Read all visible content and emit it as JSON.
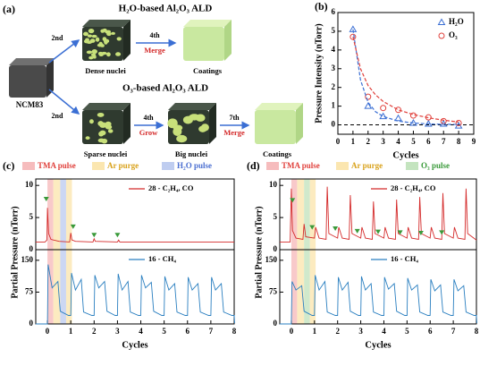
{
  "diagram": {
    "panel_label": "(a)",
    "h2o_title": "H₂O-based Al₂O₃ ALD",
    "o3_title": "O₃-based Al₂O₃ ALD",
    "ncm": "NCM83",
    "h2o_steps": [
      {
        "cycle": "2nd",
        "label": "Dense nuclei"
      },
      {
        "cycle": "4th",
        "action": "Merge",
        "label": "Coatings"
      }
    ],
    "o3_steps": [
      {
        "cycle": "2nd",
        "label": "Sparse nuclei"
      },
      {
        "cycle": "4th",
        "action": "Grow",
        "label": "Big nuclei"
      },
      {
        "cycle": "7th",
        "action": "Merge",
        "label": "Coatings"
      }
    ]
  },
  "chart_data": [
    {
      "type": "scatter",
      "panel_label": "(b)",
      "x_label": "Cycles",
      "y_label": "Pressure Intensity (nTorr)",
      "xlim": [
        0,
        9
      ],
      "xticks": [
        0,
        1,
        2,
        3,
        4,
        5,
        6,
        7,
        8,
        9
      ],
      "ylim": [
        -0.5,
        6
      ],
      "yticks": [
        0,
        1,
        2,
        3,
        4,
        5,
        6
      ],
      "hline": 0,
      "legend": "upper right",
      "series": [
        {
          "name": "H₂O",
          "color": "#3b6fd4",
          "marker": "triangle",
          "x": [
            1,
            2,
            3,
            4,
            5,
            6,
            7,
            8
          ],
          "values": [
            5.1,
            1.0,
            0.45,
            0.35,
            0.1,
            0.05,
            0.05,
            -0.05
          ]
        },
        {
          "name": "O₃",
          "color": "#e0413c",
          "marker": "circle",
          "x": [
            1,
            2,
            3,
            4,
            5,
            6,
            7,
            8
          ],
          "values": [
            4.7,
            1.5,
            0.9,
            0.8,
            0.5,
            0.4,
            0.2,
            0.1
          ]
        },
        {
          "color": "#3b6fd4",
          "dashed": true,
          "x": [
            1,
            1.5,
            2,
            2.5,
            3,
            4,
            5,
            6,
            7,
            8
          ],
          "values": [
            5.1,
            2.4,
            1.2,
            0.7,
            0.45,
            0.2,
            0.1,
            0.05,
            0.03,
            0.02
          ]
        },
        {
          "color": "#e0413c",
          "dashed": true,
          "x": [
            1,
            1.5,
            2,
            2.5,
            3,
            4,
            5,
            6,
            7,
            8
          ],
          "values": [
            4.7,
            3.0,
            2.1,
            1.6,
            1.25,
            0.8,
            0.55,
            0.38,
            0.25,
            0.15
          ]
        }
      ]
    },
    {
      "type": "line",
      "panel_label": "(c)",
      "y_label": "Partial Pressure (nTorr)",
      "xlim": [
        -0.5,
        8
      ],
      "ylim": [
        0,
        11
      ],
      "yticks": [
        0,
        5,
        10
      ],
      "bands": [
        {
          "name": "TMA pulse",
          "from": 0,
          "to": 0.25,
          "color": "#f6bcbd",
          "label_color": "#e0413c"
        },
        {
          "name": "Ar purge",
          "from": 0.25,
          "to": 0.55,
          "color": "#fbe6b0",
          "label_color": "#d9a21b"
        },
        {
          "name": "H₂O pulse",
          "from": 0.55,
          "to": 0.8,
          "color": "#bfcdf0",
          "label_color": "#4b6fd1"
        },
        {
          "from": 0.8,
          "to": 1.05,
          "color": "#fbe6b0"
        }
      ],
      "series": [
        {
          "name": "28 - C₂H₄, CO",
          "color": "#d42a2a",
          "x": [
            -0.5,
            -0.1,
            -0.02,
            0,
            0.05,
            0.15,
            0.5,
            0.95,
            1.0,
            1.05,
            1.2,
            1.95,
            2.0,
            2.05,
            3.0,
            3.05,
            3.1,
            4,
            5,
            6,
            7,
            8
          ],
          "values": [
            1.2,
            1.2,
            1.5,
            6.5,
            2.5,
            1.6,
            1.3,
            1.2,
            2.6,
            1.5,
            1.3,
            1.2,
            1.7,
            1.3,
            1.2,
            1.5,
            1.2,
            1.2,
            1.2,
            1.2,
            1.2,
            1.2
          ]
        }
      ],
      "markers": {
        "color": "#3a9a3a",
        "x": [
          -0.05,
          1.1,
          2.0,
          3.0
        ],
        "values": [
          7.8,
          3.5,
          2.2,
          2.2
        ]
      }
    },
    {
      "type": "line",
      "x_label": "Cycles",
      "xlim": [
        -0.5,
        8
      ],
      "xticks": [
        0,
        1,
        2,
        3,
        4,
        5,
        6,
        7,
        8
      ],
      "ylim": [
        0,
        175
      ],
      "yticks": [
        0,
        75,
        150
      ],
      "series": [
        {
          "name": "16 - CH₄",
          "color": "#2a7fc0",
          "x": [
            -0.5,
            -0.05,
            0,
            0.03,
            0.2,
            0.45,
            0.55,
            0.9,
            1,
            1.03,
            1.2,
            1.45,
            1.55,
            1.9,
            2,
            2.03,
            2.2,
            2.45,
            2.55,
            2.9,
            3,
            3.03,
            3.2,
            3.45,
            3.55,
            3.9,
            4,
            4.03,
            4.2,
            4.45,
            4.55,
            4.9,
            5,
            5.03,
            5.2,
            5.45,
            5.55,
            5.9,
            6,
            6.03,
            6.2,
            6.45,
            6.55,
            6.9,
            7,
            7.03,
            7.2,
            7.45,
            7.55,
            7.9,
            8,
            8.02
          ],
          "values": [
            0,
            0,
            0,
            140,
            85,
            100,
            30,
            20,
            20,
            120,
            80,
            105,
            28,
            20,
            20,
            115,
            85,
            100,
            30,
            20,
            20,
            118,
            80,
            100,
            28,
            20,
            20,
            115,
            85,
            98,
            30,
            20,
            20,
            112,
            80,
            95,
            28,
            20,
            20,
            110,
            80,
            95,
            28,
            20,
            20,
            110,
            80,
            95,
            28,
            20,
            20,
            2
          ]
        }
      ]
    },
    {
      "type": "line",
      "panel_label": "(d)",
      "y_label": "Partial Pressure (nTorr)",
      "xlim": [
        -0.5,
        8
      ],
      "ylim": [
        0,
        11
      ],
      "yticks": [
        0,
        5,
        10
      ],
      "bands": [
        {
          "name": "TMA pulse",
          "from": 0,
          "to": 0.25,
          "color": "#f6bcbd",
          "label_color": "#e0413c"
        },
        {
          "name": "Ar purge",
          "from": 0.25,
          "to": 0.55,
          "color": "#fbe6b0",
          "label_color": "#d9a21b"
        },
        {
          "name": "O₃ pulse",
          "from": 0.55,
          "to": 0.8,
          "color": "#c4e4bf",
          "label_color": "#3a9a3a"
        },
        {
          "from": 0.8,
          "to": 1.05,
          "color": "#fbe6b0"
        }
      ],
      "series": [
        {
          "name": "28 - C₂H₄, CO",
          "color": "#d42a2a",
          "x": [
            -0.5,
            -0.05,
            0,
            0.05,
            0.2,
            0.5,
            0.55,
            0.62,
            1,
            1.05,
            1.2,
            1.5,
            1.55,
            1.62,
            2,
            2.05,
            2.2,
            2.5,
            2.55,
            2.62,
            3,
            3.05,
            3.2,
            3.5,
            3.55,
            3.62,
            4,
            4.05,
            4.2,
            4.5,
            4.55,
            4.62,
            5,
            5.05,
            5.2,
            5.5,
            5.55,
            5.62,
            6,
            6.05,
            6.2,
            6.5,
            6.55,
            6.62,
            7,
            7.05,
            7.2,
            7.5,
            7.55,
            7.62,
            8
          ],
          "values": [
            1.2,
            1.2,
            9.5,
            3,
            1.8,
            1.6,
            4,
            2,
            1.8,
            3.5,
            1.8,
            1.6,
            9.8,
            2.5,
            1.8,
            3.5,
            1.8,
            1.6,
            8.5,
            2.5,
            1.8,
            3.5,
            1.8,
            1.6,
            7.5,
            2.5,
            1.8,
            3.5,
            1.8,
            1.6,
            7.8,
            2.5,
            1.8,
            3.5,
            1.8,
            1.6,
            8.2,
            2.5,
            1.8,
            3.5,
            1.8,
            1.6,
            8.8,
            2.5,
            1.8,
            3.5,
            1.8,
            1.6,
            9.5,
            2.5,
            1.5
          ]
        }
      ],
      "markers": {
        "color": "#3a9a3a",
        "x": [
          0.05,
          0.9,
          1.9,
          2.85,
          3.75,
          4.7,
          5.6,
          6.5
        ],
        "values": [
          7.6,
          3.4,
          3.2,
          2.8,
          2.7,
          2.6,
          2.5,
          2.6
        ]
      }
    },
    {
      "type": "line",
      "x_label": "Cycles",
      "xlim": [
        -0.5,
        8
      ],
      "xticks": [
        0,
        1,
        2,
        3,
        4,
        5,
        6,
        7,
        8
      ],
      "ylim": [
        0,
        175
      ],
      "yticks": [
        0,
        75,
        150
      ],
      "series": [
        {
          "name": "16 - CH₄",
          "color": "#2a7fc0",
          "x": [
            -0.5,
            -0.05,
            0,
            0.03,
            0.2,
            0.45,
            0.55,
            0.9,
            1,
            1.03,
            1.2,
            1.45,
            1.55,
            1.9,
            2,
            2.03,
            2.2,
            2.45,
            2.55,
            2.9,
            3,
            3.03,
            3.2,
            3.45,
            3.55,
            3.9,
            4,
            4.03,
            4.2,
            4.45,
            4.55,
            4.9,
            5,
            5.03,
            5.2,
            5.45,
            5.55,
            5.9,
            6,
            6.03,
            6.2,
            6.45,
            6.55,
            6.9,
            7,
            7.03,
            7.2,
            7.45,
            7.55,
            7.9,
            8,
            8.02
          ],
          "values": [
            0,
            0,
            0,
            100,
            80,
            90,
            30,
            20,
            20,
            115,
            80,
            100,
            28,
            20,
            20,
            110,
            80,
            98,
            30,
            20,
            20,
            112,
            80,
            95,
            28,
            20,
            20,
            110,
            82,
            95,
            30,
            20,
            20,
            108,
            80,
            92,
            28,
            20,
            20,
            105,
            78,
            92,
            28,
            20,
            20,
            105,
            78,
            90,
            28,
            20,
            20,
            2
          ]
        }
      ]
    }
  ]
}
